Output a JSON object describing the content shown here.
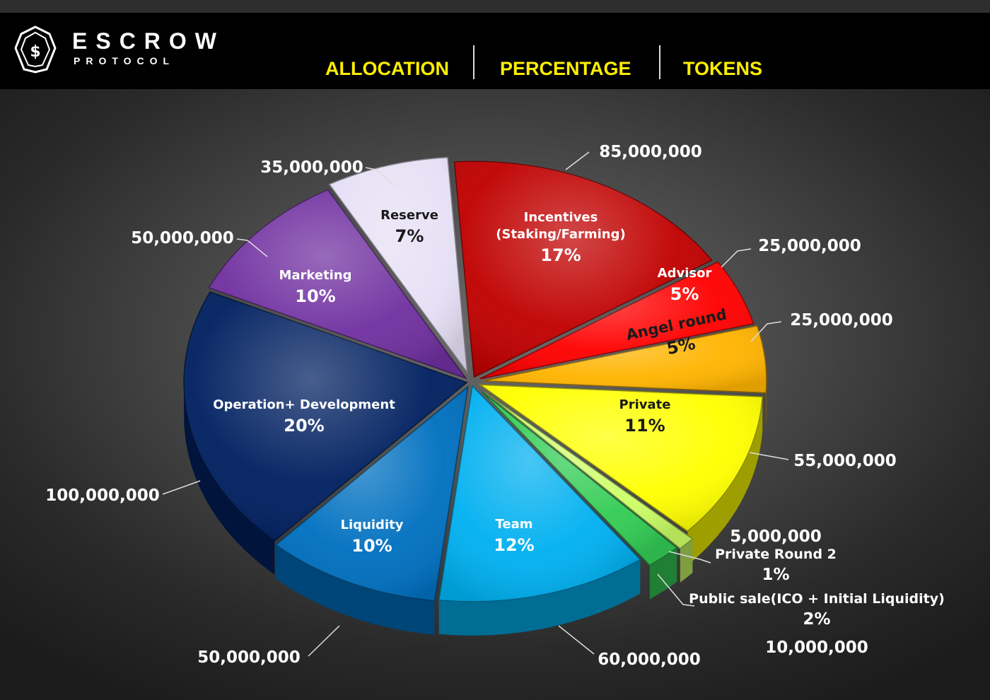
{
  "brand": {
    "name": "ESCROW",
    "sub": "PROTOCOL"
  },
  "header": {
    "col1": "ALLOCATION",
    "col2": "PERCENTAGE",
    "col3": "TOKENS"
  },
  "chart_data": {
    "type": "pie",
    "unit": "tokens",
    "slices": [
      {
        "name": "Incentives (Staking/Farming)",
        "label_lines": [
          "Incentives",
          "(Staking/Farming)"
        ],
        "percent_label": "17%",
        "percent": 17,
        "tokens": 85000000,
        "tokens_label": "85,000,000",
        "color": "#c00000"
      },
      {
        "name": "Advisor",
        "label_lines": [
          "Advisor"
        ],
        "percent_label": "5%",
        "percent": 5,
        "tokens": 25000000,
        "tokens_label": "25,000,000",
        "color": "#ff0000"
      },
      {
        "name": "Angel round",
        "label_lines": [
          "Angel round"
        ],
        "percent_label": "5%",
        "percent": 5,
        "tokens": 25000000,
        "tokens_label": "25,000,000",
        "color": "#ffb400"
      },
      {
        "name": "Private",
        "label_lines": [
          "Private"
        ],
        "percent_label": "11%",
        "percent": 11,
        "tokens": 55000000,
        "tokens_label": "55,000,000",
        "color": "#ffff00"
      },
      {
        "name": "Private Round 2",
        "label_lines": [
          "Private Round 2"
        ],
        "percent_label": "1%",
        "percent": 1,
        "tokens": 5000000,
        "tokens_label": "5,000,000",
        "color": "#ccff66"
      },
      {
        "name": "Public sale(ICO + Initial Liquidity)",
        "label_lines": [
          "Public sale(ICO + Initial Liquidity)"
        ],
        "percent_label": "2%",
        "percent": 2,
        "tokens": 10000000,
        "tokens_label": "10,000,000",
        "color": "#33cc55"
      },
      {
        "name": "Team",
        "label_lines": [
          "Team"
        ],
        "percent_label": "12%",
        "percent": 12,
        "tokens": 60000000,
        "tokens_label": "60,000,000",
        "color": "#00b0f0"
      },
      {
        "name": "Liquidity",
        "label_lines": [
          "Liquidity"
        ],
        "percent_label": "10%",
        "percent": 10,
        "tokens": 50000000,
        "tokens_label": "50,000,000",
        "color": "#0070c0"
      },
      {
        "name": "Operation+ Development",
        "label_lines": [
          "Operation+ Development"
        ],
        "percent_label": "20%",
        "percent": 20,
        "tokens": 100000000,
        "tokens_label": "100,000,000",
        "color": "#002060"
      },
      {
        "name": "Marketing",
        "label_lines": [
          "Marketing"
        ],
        "percent_label": "10%",
        "percent": 10,
        "tokens": 50000000,
        "tokens_label": "50,000,000",
        "color": "#7030a0"
      },
      {
        "name": "Reserve",
        "label_lines": [
          "Reserve"
        ],
        "percent_label": "7%",
        "percent": 7,
        "tokens": 35000000,
        "tokens_label": "35,000,000",
        "color": "#e6e0f5"
      }
    ]
  }
}
